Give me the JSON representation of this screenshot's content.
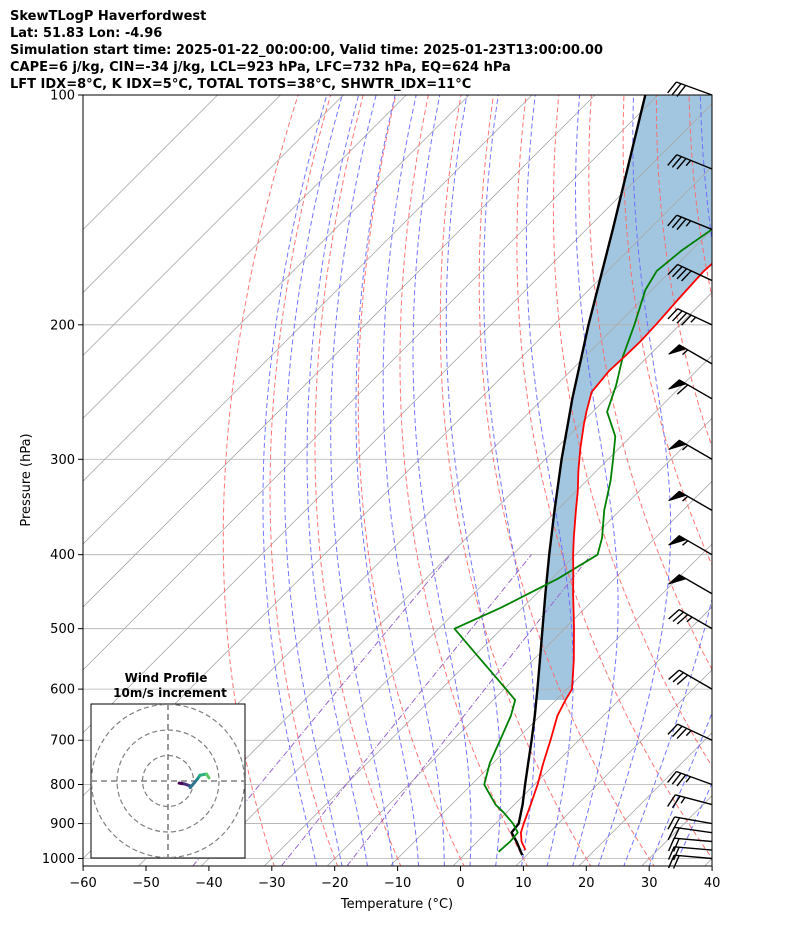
{
  "header": {
    "title": "SkewTLogP Haverfordwest",
    "latlon": "Lat: 51.83   Lon: -4.96",
    "times": "Simulation start time: 2025-01-22_00:00:00, Valid time: 2025-01-23T13:00:00.00",
    "indices1": "CAPE=6 j/kg, CIN=-34 j/kg, LCL=923 hPa, LFC=732 hPa, EQ=624 hPa",
    "indices2": "LFT IDX=8°C, K IDX=5°C, TOTAL TOTS=38°C, SHWTR_IDX=11°C"
  },
  "chart_data": {
    "type": "line",
    "title": "SkewTLogP Haverfordwest",
    "xlabel": "Temperature (°C)",
    "ylabel": "Pressure (hPa)",
    "xlim": [
      -60,
      40
    ],
    "ylim": [
      1050,
      100
    ],
    "y_scale": "log",
    "x_ticks": [
      -60,
      -50,
      -40,
      -30,
      -20,
      -10,
      0,
      10,
      20,
      30,
      40
    ],
    "y_ticks": [
      100,
      200,
      300,
      400,
      500,
      600,
      700,
      800,
      900,
      1000
    ],
    "x_tick_labels": [
      "−60",
      "−50",
      "−40",
      "−30",
      "−20",
      "−10",
      "0",
      "10",
      "20",
      "30",
      "40"
    ],
    "y_tick_labels": [
      "100",
      "200",
      "300",
      "400",
      "500",
      "600",
      "700",
      "800",
      "900",
      "1000"
    ],
    "grid": true,
    "colors": {
      "temperature": "#ff0000",
      "dewpoint": "#008000",
      "parcel": "#000000",
      "fill": "#a3c6e0",
      "dry_adiabat": "#ff6666",
      "moist_adiabat": "#6666ff",
      "mixing_ratio": "#9966cc",
      "isotherm": "#aaaaaa"
    },
    "series": [
      {
        "key": "temperature",
        "pressure": [
          975,
          950,
          925,
          900,
          850,
          800,
          750,
          700,
          650,
          620,
          600,
          550,
          500,
          480,
          450,
          420,
          400,
          380,
          350,
          330,
          310,
          290,
          270,
          260,
          245,
          230,
          220,
          210,
          200,
          185,
          170,
          160,
          150,
          140,
          130,
          120,
          110,
          100
        ],
        "values": [
          9.0,
          7.0,
          5.5,
          4.5,
          2.6,
          0.5,
          -2.0,
          -4.5,
          -7.3,
          -8.5,
          -9.2,
          -13.5,
          -18.5,
          -20.7,
          -24.2,
          -27.8,
          -30.4,
          -33.0,
          -37.0,
          -39.8,
          -43.0,
          -46.2,
          -49.4,
          -51.0,
          -53.3,
          -53.9,
          -53.7,
          -53.6,
          -53.8,
          -54.3,
          -54.7,
          -54.3,
          -52.5,
          -50.0,
          -49.0,
          -48.5,
          -48.7,
          -49.2
        ]
      },
      {
        "key": "dewpoint",
        "pressure": [
          980,
          950,
          925,
          900,
          870,
          850,
          800,
          750,
          700,
          650,
          620,
          580,
          540,
          500,
          470,
          430,
          400,
          380,
          350,
          320,
          300,
          280,
          260,
          240,
          220,
          200,
          180,
          170,
          160,
          140,
          120,
          100
        ],
        "values": [
          5.0,
          5.2,
          5.0,
          2.8,
          -0.5,
          -3.0,
          -8.0,
          -10.5,
          -12.5,
          -14.7,
          -16.5,
          -23.0,
          -30.0,
          -37.5,
          -33.5,
          -29.0,
          -26.5,
          -28.5,
          -32.5,
          -36.2,
          -39.2,
          -42.5,
          -47.7,
          -50.5,
          -54.0,
          -57.2,
          -61.0,
          -62.2,
          -61.5,
          -58.5,
          -53.5,
          -48.4
        ]
      },
      {
        "key": "parcel",
        "pressure": [
          990,
          950,
          925,
          900,
          850,
          800,
          750,
          700,
          650,
          600,
          550,
          500,
          450,
          400,
          350,
          300,
          250,
          200,
          150,
          100
        ],
        "values": [
          9.3,
          6.2,
          4.0,
          3.7,
          1.3,
          -1.5,
          -4.4,
          -7.5,
          -10.9,
          -14.7,
          -18.9,
          -23.5,
          -28.6,
          -34.2,
          -40.4,
          -47.4,
          -55.3,
          -64.5,
          -75.8,
          -92.0
        ]
      }
    ],
    "wind_barbs": {
      "pressure": [
        1000,
        975,
        950,
        925,
        900,
        850,
        800,
        700,
        600,
        500,
        450,
        400,
        350,
        300,
        250,
        225,
        200,
        175,
        150,
        125,
        100
      ],
      "speed_kt": [
        20,
        20,
        20,
        20,
        20,
        25,
        35,
        35,
        30,
        35,
        50,
        55,
        55,
        55,
        60,
        55,
        45,
        40,
        35,
        35,
        30
      ],
      "direction_deg": [
        275,
        275,
        275,
        278,
        280,
        285,
        290,
        295,
        300,
        300,
        300,
        300,
        300,
        300,
        300,
        300,
        295,
        295,
        292,
        292,
        290
      ]
    },
    "inset": {
      "title": "Wind Profile",
      "subtitle": "10m/s increment",
      "hodograph_u": [
        -6.5,
        -4.5,
        -2.5,
        -2.2,
        0.5,
        1.5,
        4.0,
        5.0
      ],
      "hodograph_v": [
        1.5,
        1.2,
        0.5,
        -0.2,
        3.0,
        4.5,
        5.0,
        3.5
      ]
    }
  }
}
